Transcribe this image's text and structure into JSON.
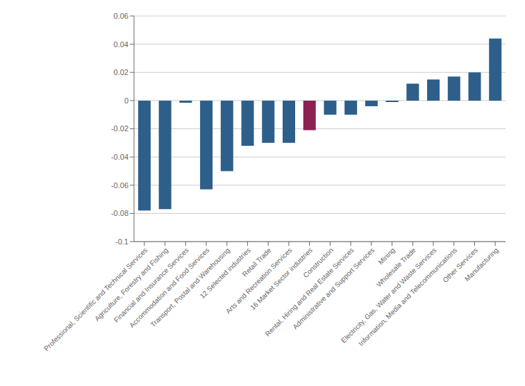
{
  "chart_data": {
    "type": "bar",
    "categories": [
      "Professional, Scientific and Technical Services",
      "Agriculture, Forestry and Fishing",
      "Financial and Insurance Services",
      "Accommodation and Food Services",
      "Transport, Postal and Warehousing",
      "12 Selected industries",
      "Retail Trade",
      "Arts and Recreation Services",
      "16 Market Sector industries",
      "Construction",
      "Rental, Hiring and Real Estate Services",
      "Administrative and Support Services",
      "Mining",
      "Wholesale Trade",
      "Electricity, Gas, Water and Waste Services",
      "Information, Media and Telecommunications",
      "Other Services",
      "Manufacturing"
    ],
    "values": [
      -0.078,
      -0.077,
      -0.0015,
      -0.063,
      -0.05,
      -0.032,
      -0.03,
      -0.03,
      -0.021,
      -0.01,
      -0.01,
      -0.004,
      -0.001,
      0.012,
      0.015,
      0.017,
      0.02,
      0.044
    ],
    "colors": [
      "#2e5f8a",
      "#2e5f8a",
      "#2e5f8a",
      "#2e5f8a",
      "#2e5f8a",
      "#2e5f8a",
      "#2e5f8a",
      "#2e5f8a",
      "#8b2252",
      "#2e5f8a",
      "#2e5f8a",
      "#2e5f8a",
      "#2e5f8a",
      "#2e5f8a",
      "#2e5f8a",
      "#2e5f8a",
      "#2e5f8a",
      "#2e5f8a"
    ],
    "ylim": [
      -0.1,
      0.06
    ],
    "yticks": [
      -0.1,
      -0.08,
      -0.06,
      -0.04,
      -0.02,
      0,
      0.02,
      0.04,
      0.06
    ],
    "grid": true
  }
}
